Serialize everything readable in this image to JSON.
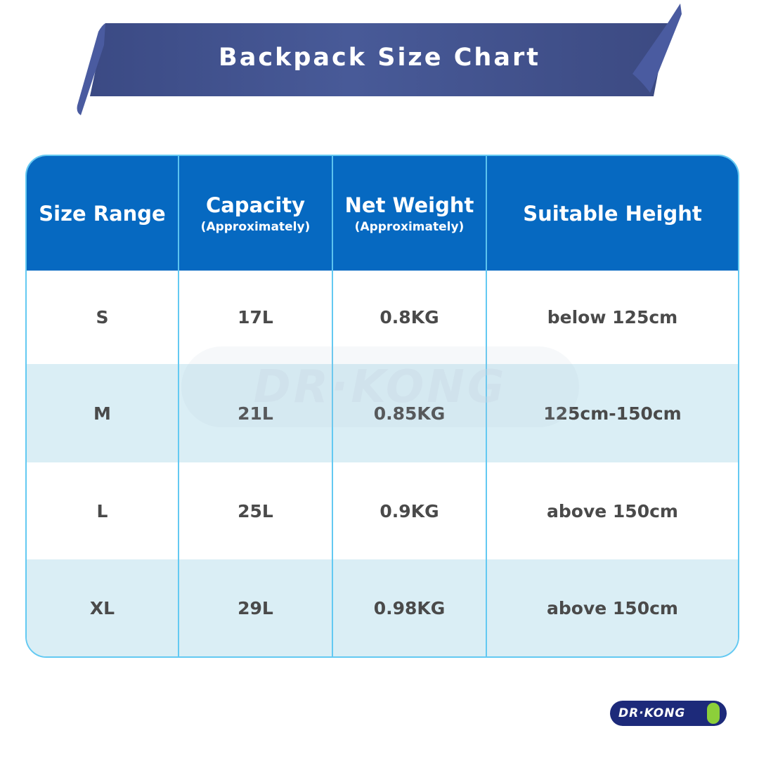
{
  "title": "Backpack Size Chart",
  "colors": {
    "banner": "#435393",
    "header": "#0669c1",
    "border": "#63c9f2",
    "stripe": "#daeef5",
    "text": "#4a4a4a"
  },
  "table": {
    "headers": [
      {
        "label": "Size Range",
        "sub": ""
      },
      {
        "label": "Capacity",
        "sub": "(Approximately)"
      },
      {
        "label": "Net Weight",
        "sub": "(Approximately)"
      },
      {
        "label": "Suitable Height",
        "sub": ""
      }
    ],
    "rows": [
      [
        "S",
        "17L",
        "0.8KG",
        "below 125cm"
      ],
      [
        "M",
        "21L",
        "0.85KG",
        "125cm-150cm"
      ],
      [
        "L",
        "25L",
        "0.9KG",
        "above 150cm"
      ],
      [
        "XL",
        "29L",
        "0.98KG",
        "above 150cm"
      ]
    ]
  },
  "brand": {
    "logo_text": "DR·KONG",
    "watermark_text": "DR·KONG",
    "icon": "footprint-icon"
  }
}
